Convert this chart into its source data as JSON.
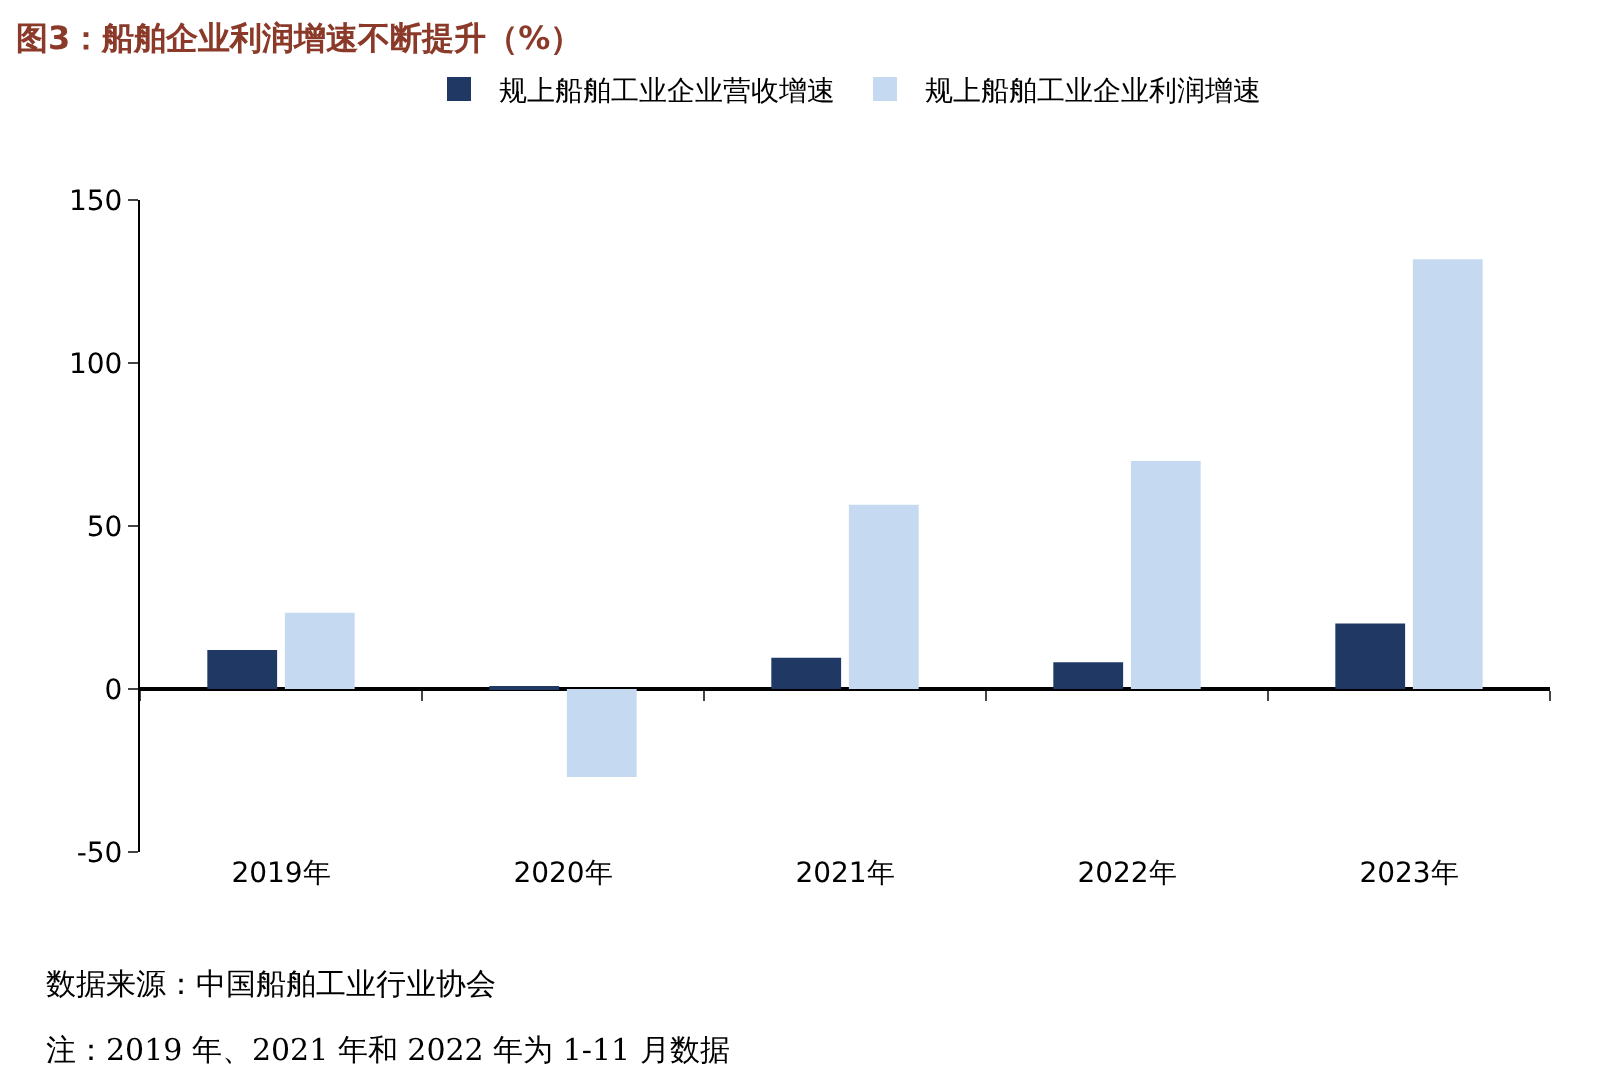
{
  "chart_data": {
    "type": "bar",
    "title": "图3：船舶企业利润增速不断提升（%）",
    "categories": [
      "2019年",
      "2020年",
      "2021年",
      "2022年",
      "2023年"
    ],
    "series": [
      {
        "name": "规上船舶工业企业营收增速",
        "color": "#1f3864",
        "values": [
          12,
          0.8,
          9.6,
          8.2,
          20.1
        ]
      },
      {
        "name": "规上船舶工业企业利润增速",
        "color": "#c5d9f0",
        "values": [
          23.4,
          -27,
          56.5,
          69.9,
          131.8
        ]
      }
    ],
    "ylim": [
      -50,
      150
    ],
    "yticks": [
      -50,
      0,
      50,
      100,
      150
    ],
    "legend": "top",
    "annotations": [
      "数据来源：中国船舶工业行业协会",
      "注：2019 年、2021 年和 2022 年为 1-11 月数据"
    ]
  }
}
